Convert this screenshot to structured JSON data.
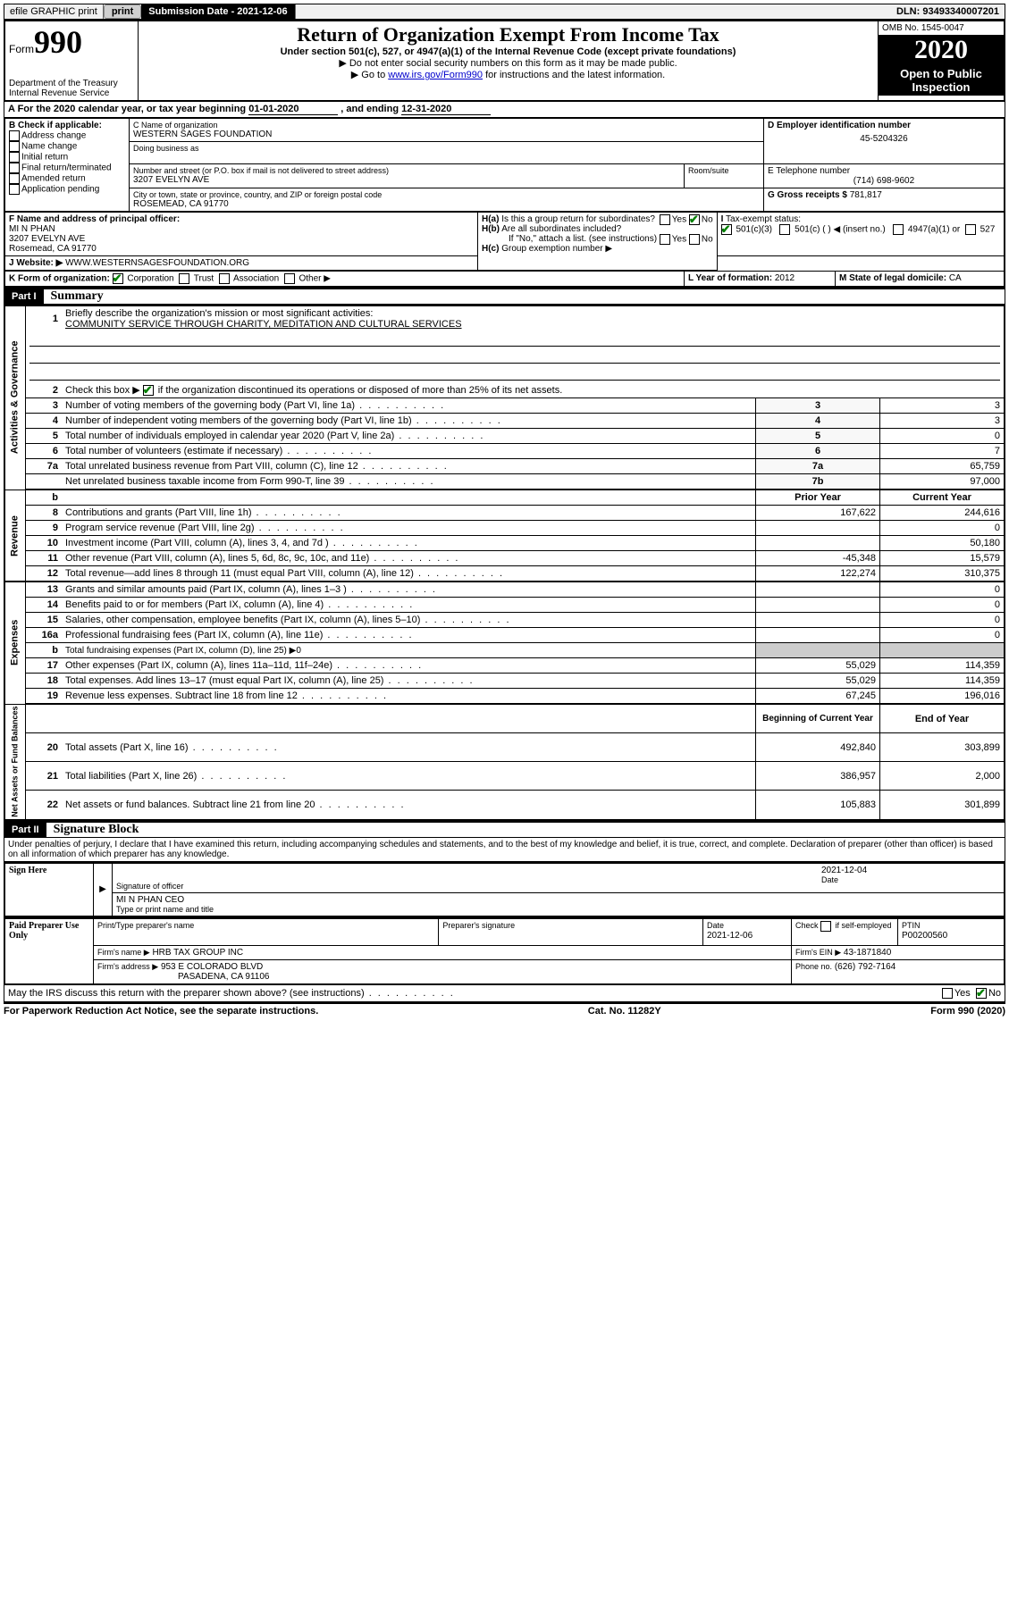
{
  "top": {
    "efile": "efile GRAPHIC print",
    "sub_label": "Submission Date",
    "sub_date": "2021-12-06",
    "dln_label": "DLN:",
    "dln": "93493340007201"
  },
  "header": {
    "form_word": "Form",
    "form_num": "990",
    "dept": "Department of the Treasury\nInternal Revenue Service",
    "title": "Return of Organization Exempt From Income Tax",
    "subtitle": "Under section 501(c), 527, or 4947(a)(1) of the Internal Revenue Code (except private foundations)",
    "arrow1": "▶ Do not enter social security numbers on this form as it may be made public.",
    "arrow2_pre": "▶ Go to ",
    "arrow2_link": "www.irs.gov/Form990",
    "arrow2_post": " for instructions and the latest information.",
    "omb": "OMB No. 1545-0047",
    "year": "2020",
    "open": "Open to Public Inspection"
  },
  "sectionA": {
    "text_pre": "A  For the 2020 calendar year, or tax year beginning ",
    "begin": "01-01-2020",
    "mid": "  , and ending ",
    "end": "12-31-2020"
  },
  "boxB": {
    "label": "B Check if applicable:",
    "items": [
      "Address change",
      "Name change",
      "Initial return",
      "Final return/terminated",
      "Amended return",
      "Application pending"
    ]
  },
  "boxC": {
    "name_label": "C Name of organization",
    "name": "WESTERN SAGES FOUNDATION",
    "dba_label": "Doing business as",
    "street_label": "Number and street (or P.O. box if mail is not delivered to street address)",
    "street": "3207 EVELYN AVE",
    "room_label": "Room/suite",
    "city_label": "City or town, state or province, country, and ZIP or foreign postal code",
    "city": "ROSEMEAD, CA  91770"
  },
  "boxD": {
    "label": "D Employer identification number",
    "ein": "45-5204326"
  },
  "boxE": {
    "label": "E Telephone number",
    "phone": "(714) 698-9602"
  },
  "boxG": {
    "label": "G Gross receipts $",
    "val": "781,817"
  },
  "boxF": {
    "label": "F Name and address of principal officer:",
    "name": "MI N PHAN",
    "addr1": "3207 EVELYN AVE",
    "addr2": "Rosemead, CA  91770"
  },
  "boxH": {
    "a_label": "H(a)",
    "a_text": "Is this a group return for subordinates?",
    "b_label": "H(b)",
    "b_text": "Are all subordinates included?",
    "b_note": "If \"No,\" attach a list. (see instructions)",
    "c_label": "H(c)",
    "c_text": "Group exemption number ▶",
    "yes": "Yes",
    "no": "No"
  },
  "boxI": {
    "label": "I",
    "text": "Tax-exempt status:",
    "o1": "501(c)(3)",
    "o2": "501(c) (   ) ◀ (insert no.)",
    "o3": "4947(a)(1) or",
    "o4": "527"
  },
  "boxJ": {
    "label": "J",
    "text": "Website: ▶",
    "url": "WWW.WESTERNSAGESFOUNDATION.ORG"
  },
  "boxK": {
    "label": "K Form of organization:",
    "o1": "Corporation",
    "o2": "Trust",
    "o3": "Association",
    "o4": "Other ▶"
  },
  "boxL": {
    "label": "L Year of formation:",
    "val": "2012"
  },
  "boxM": {
    "label": "M State of legal domicile:",
    "val": "CA"
  },
  "part1": {
    "tag": "Part I",
    "title": "Summary"
  },
  "summary": {
    "l1_label": "1",
    "l1_text": "Briefly describe the organization's mission or most significant activities:",
    "l1_val": "COMMUNITY SERVICE THROUGH CHARITY, MEDITATION AND CULTURAL SERVICES",
    "l2_label": "2",
    "l2_text": "Check this box ▶      if the organization discontinued its operations or disposed of more than 25% of its net assets.",
    "rows": [
      {
        "n": "3",
        "t": "Number of voting members of the governing body (Part VI, line 1a)",
        "b": "3",
        "v": "3"
      },
      {
        "n": "4",
        "t": "Number of independent voting members of the governing body (Part VI, line 1b)",
        "b": "4",
        "v": "3"
      },
      {
        "n": "5",
        "t": "Total number of individuals employed in calendar year 2020 (Part V, line 2a)",
        "b": "5",
        "v": "0"
      },
      {
        "n": "6",
        "t": "Total number of volunteers (estimate if necessary)",
        "b": "6",
        "v": "7"
      },
      {
        "n": "7a",
        "t": "Total unrelated business revenue from Part VIII, column (C), line 12",
        "b": "7a",
        "v": "65,759"
      },
      {
        "n": "",
        "t": "Net unrelated business taxable income from Form 990-T, line 39",
        "b": "7b",
        "v": "97,000"
      }
    ],
    "col_prior": "Prior Year",
    "col_current": "Current Year",
    "revenue": [
      {
        "n": "8",
        "t": "Contributions and grants (Part VIII, line 1h)",
        "p": "167,622",
        "c": "244,616"
      },
      {
        "n": "9",
        "t": "Program service revenue (Part VIII, line 2g)",
        "p": "",
        "c": "0"
      },
      {
        "n": "10",
        "t": "Investment income (Part VIII, column (A), lines 3, 4, and 7d )",
        "p": "",
        "c": "50,180"
      },
      {
        "n": "11",
        "t": "Other revenue (Part VIII, column (A), lines 5, 6d, 8c, 9c, 10c, and 11e)",
        "p": "-45,348",
        "c": "15,579"
      },
      {
        "n": "12",
        "t": "Total revenue—add lines 8 through 11 (must equal Part VIII, column (A), line 12)",
        "p": "122,274",
        "c": "310,375"
      }
    ],
    "expenses": [
      {
        "n": "13",
        "t": "Grants and similar amounts paid (Part IX, column (A), lines 1–3 )",
        "p": "",
        "c": "0"
      },
      {
        "n": "14",
        "t": "Benefits paid to or for members (Part IX, column (A), line 4)",
        "p": "",
        "c": "0"
      },
      {
        "n": "15",
        "t": "Salaries, other compensation, employee benefits (Part IX, column (A), lines 5–10)",
        "p": "",
        "c": "0"
      },
      {
        "n": "16a",
        "t": "Professional fundraising fees (Part IX, column (A), line 11e)",
        "p": "",
        "c": "0"
      },
      {
        "n": "b",
        "t": "Total fundraising expenses (Part IX, column (D), line 25) ▶0",
        "p": "__SHADE__",
        "c": "__SHADE__"
      },
      {
        "n": "17",
        "t": "Other expenses (Part IX, column (A), lines 11a–11d, 11f–24e)",
        "p": "55,029",
        "c": "114,359"
      },
      {
        "n": "18",
        "t": "Total expenses. Add lines 13–17 (must equal Part IX, column (A), line 25)",
        "p": "55,029",
        "c": "114,359"
      },
      {
        "n": "19",
        "t": "Revenue less expenses. Subtract line 18 from line 12",
        "p": "67,245",
        "c": "196,016"
      }
    ],
    "col_begin": "Beginning of Current Year",
    "col_end": "End of Year",
    "netassets": [
      {
        "n": "20",
        "t": "Total assets (Part X, line 16)",
        "p": "492,840",
        "c": "303,899"
      },
      {
        "n": "21",
        "t": "Total liabilities (Part X, line 26)",
        "p": "386,957",
        "c": "2,000"
      },
      {
        "n": "22",
        "t": "Net assets or fund balances. Subtract line 21 from line 20",
        "p": "105,883",
        "c": "301,899"
      }
    ]
  },
  "vert": {
    "gov": "Activities & Governance",
    "rev": "Revenue",
    "exp": "Expenses",
    "net": "Net Assets or Fund Balances"
  },
  "part2": {
    "tag": "Part II",
    "title": "Signature Block",
    "penalty": "Under penalties of perjury, I declare that I have examined this return, including accompanying schedules and statements, and to the best of my knowledge and belief, it is true, correct, and complete. Declaration of preparer (other than officer) is based on all information of which preparer has any knowledge."
  },
  "sign": {
    "side": "Sign Here",
    "sig_label": "Signature of officer",
    "date_label": "Date",
    "date_val": "2021-12-04",
    "name": "MI N PHAN CEO",
    "name_label": "Type or print name and title"
  },
  "paid": {
    "side": "Paid Preparer Use Only",
    "h1": "Print/Type preparer's name",
    "h2": "Preparer's signature",
    "h3_label": "Date",
    "h3_val": "2021-12-06",
    "h4": "Check      if self-employed",
    "h5_label": "PTIN",
    "h5_val": "P00200560",
    "firm_name_label": "Firm's name     ▶",
    "firm_name": "HRB TAX GROUP INC",
    "firm_ein_label": "Firm's EIN ▶",
    "firm_ein": "43-1871840",
    "firm_addr_label": "Firm's address ▶",
    "firm_addr1": "953 E COLORADO BLVD",
    "firm_addr2": "PASADENA, CA  91106",
    "phone_label": "Phone no.",
    "phone": "(626) 792-7164"
  },
  "discuss": {
    "text": "May the IRS discuss this return with the preparer shown above? (see instructions)",
    "yes": "Yes",
    "no": "No"
  },
  "footer": {
    "left": "For Paperwork Reduction Act Notice, see the separate instructions.",
    "mid": "Cat. No. 11282Y",
    "right": "Form 990 (2020)"
  }
}
